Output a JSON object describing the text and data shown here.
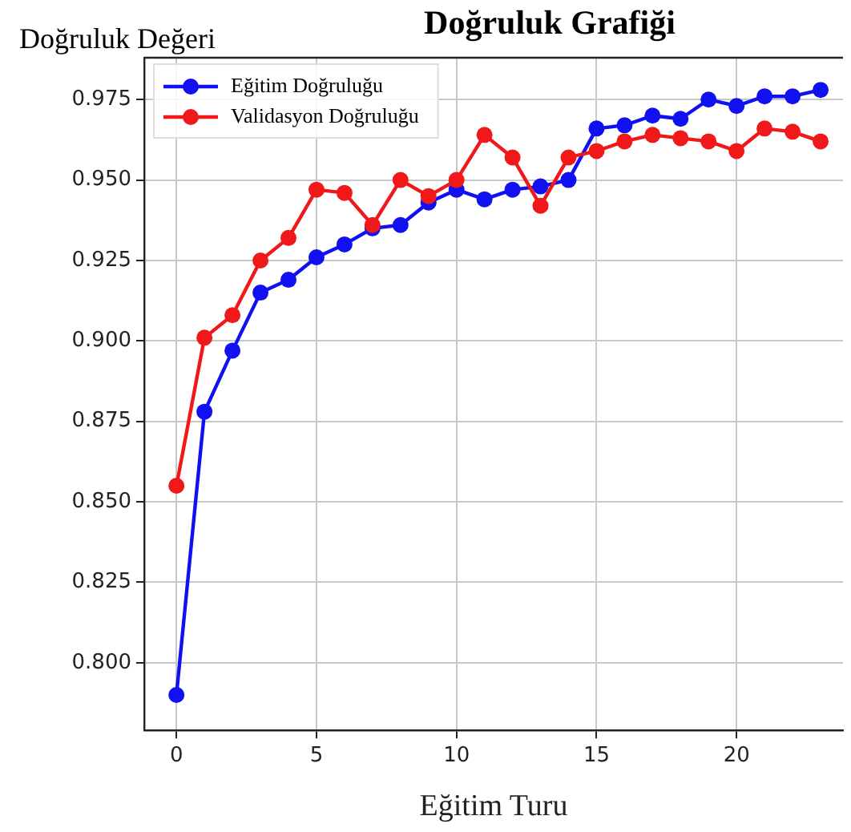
{
  "chart_data": {
    "type": "line",
    "title": "Doğruluk Grafiği",
    "xlabel": "Eğitim Turu",
    "ylabel": "Doğruluk Değeri",
    "x": [
      0,
      1,
      2,
      3,
      4,
      5,
      6,
      7,
      8,
      9,
      10,
      11,
      12,
      13,
      14,
      15,
      16,
      17,
      18,
      19,
      20,
      21,
      22,
      23
    ],
    "series": [
      {
        "name": "Eğitim Doğruluğu",
        "color": "#1010f0",
        "values": [
          0.79,
          0.878,
          0.897,
          0.915,
          0.919,
          0.926,
          0.93,
          0.935,
          0.936,
          0.943,
          0.947,
          0.944,
          0.947,
          0.948,
          0.95,
          0.966,
          0.967,
          0.97,
          0.969,
          0.975,
          0.973,
          0.976,
          0.976,
          0.978
        ]
      },
      {
        "name": "Validasyon Doğruluğu",
        "color": "#f01818",
        "values": [
          0.855,
          0.901,
          0.908,
          0.925,
          0.932,
          0.947,
          0.946,
          0.936,
          0.95,
          0.945,
          0.95,
          0.964,
          0.957,
          0.942,
          0.957,
          0.959,
          0.962,
          0.964,
          0.963,
          0.962,
          0.959,
          0.966,
          0.965,
          0.962
        ]
      }
    ],
    "xlim": [
      -1.15,
      23.8
    ],
    "xticks": [
      0,
      5,
      10,
      15,
      20
    ],
    "ylim": [
      0.779,
      0.988
    ],
    "yticks": [
      {
        "value": 0.8,
        "label": "0.800"
      },
      {
        "value": 0.825,
        "label": "0.825"
      },
      {
        "value": 0.85,
        "label": "0.850"
      },
      {
        "value": 0.875,
        "label": "0.875"
      },
      {
        "value": 0.9,
        "label": "0.900"
      },
      {
        "value": 0.925,
        "label": "0.925"
      },
      {
        "value": 0.95,
        "label": "0.950"
      },
      {
        "value": 0.975,
        "label": "0.975"
      }
    ],
    "grid": true,
    "legend": "top left",
    "marker": "circle",
    "line_style": "solid"
  }
}
